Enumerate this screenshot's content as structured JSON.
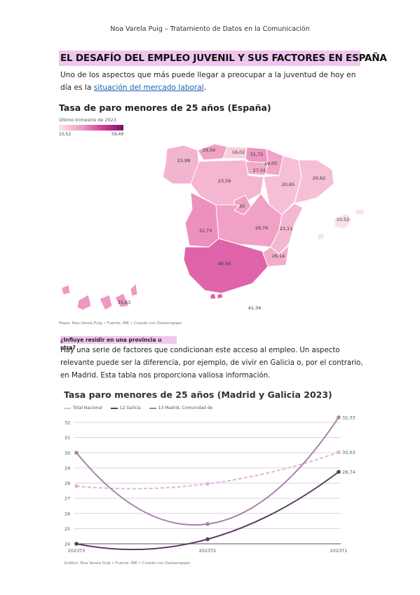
{
  "header": {
    "text": "Noa Varela Puig – Tratamiento de Datos en la Comunicación"
  },
  "article": {
    "title": "El desafío del empleo juvenil y sus factores en España",
    "intro_text": "Uno de los aspectos que más puede llegar a preocupar a la juventud de hoy en día es la ",
    "intro_link": "situación del mercado laboral",
    "intro_end": ".",
    "question": "¿Influye residir en una provincia u otra?",
    "body": "Hay una serie de factores que condicionan este acceso al empleo. Un aspecto relevante puede ser la diferencia, por ejemplo, de vivir en Galicia o, por el contrario, en Madrid. Esta tabla nos proporciona valiosa información."
  },
  "map": {
    "title": "Tasa de paro  menores de 25 años (España)",
    "subtitle": "Último trimestre de 2023",
    "legend_min": "10,52",
    "legend_max": "59,49",
    "credit": "Mapa: Noa Varela Puig • Fuente: INE • Creado con Datawrapper",
    "colors": {
      "low": "#fbe1e9",
      "mid": "#f0a0c4",
      "high": "#d43c98",
      "max": "#7a0e6a"
    }
  },
  "chart_data": [
    {
      "type": "heatmap",
      "title": "Tasa de paro  menores de 25 años (España)",
      "subtitle": "Último trimestre de 2023",
      "scale": [
        10.52,
        59.49
      ],
      "values": [
        {
          "label": "23,98",
          "value": 23.98
        },
        {
          "label": "29,56",
          "value": 29.56
        },
        {
          "label": "16,02",
          "value": 16.02
        },
        {
          "label": "31,72",
          "value": 31.72
        },
        {
          "label": "29,05",
          "value": 29.05
        },
        {
          "label": "27,02",
          "value": 27.02
        },
        {
          "label": "23,59",
          "value": 23.59
        },
        {
          "label": "20,65",
          "value": 20.65
        },
        {
          "label": "20,62",
          "value": 20.62
        },
        {
          "label": "30",
          "value": 30
        },
        {
          "label": "32,73",
          "value": 32.73
        },
        {
          "label": "29,76",
          "value": 29.76
        },
        {
          "label": "23,11",
          "value": 23.11
        },
        {
          "label": "10,52",
          "value": 10.52
        },
        {
          "label": "26,14",
          "value": 26.14
        },
        {
          "label": "40,56",
          "value": 40.56
        },
        {
          "label": "31,63",
          "value": 31.63
        },
        {
          "label": "41,34",
          "value": 41.34
        }
      ]
    },
    {
      "type": "line",
      "title": "Tasa paro menores de 25 años (Madrid y Galicia 2023)",
      "categories": [
        "2023T3",
        "2023T2",
        "2023T1"
      ],
      "ylim": [
        24,
        32
      ],
      "yticks": [
        24,
        25,
        26,
        27,
        28,
        29,
        30,
        31,
        32
      ],
      "grid": true,
      "legend_position": "top-left",
      "series": [
        {
          "name": "Total Nacional",
          "values": [
            27.8,
            27.95,
            30.03
          ],
          "end_label": "30,03",
          "color": "#e3b3e3",
          "dashed": true
        },
        {
          "name": "12 Galicia",
          "values": [
            24.0,
            24.3,
            28.74
          ],
          "end_label": "28,74",
          "color": "#5e3a62",
          "dashed": false
        },
        {
          "name": "13 Madrid, Comunidad de",
          "values": [
            30.0,
            25.3,
            32.33
          ],
          "end_label": "32,33",
          "color": "#a982ac",
          "dashed": false
        }
      ],
      "credit": "Gráfico: Noa Varela Puig • Fuente: INE • Creado con Datawrapper"
    }
  ]
}
